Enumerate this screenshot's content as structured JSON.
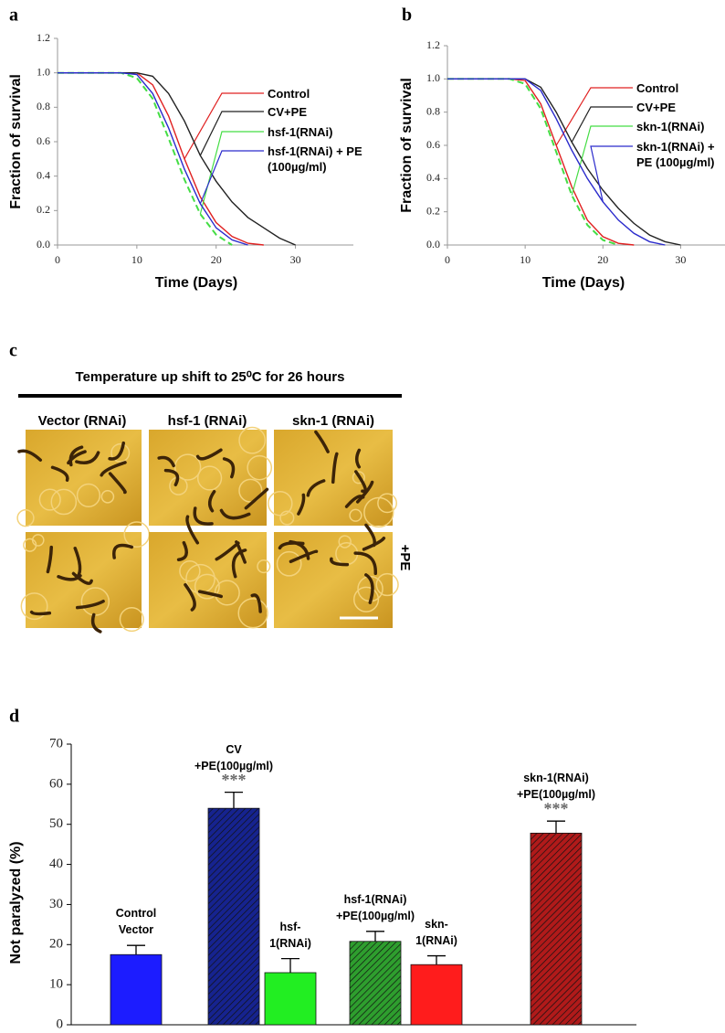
{
  "chart_data": [
    {
      "panel": "a",
      "type": "line",
      "ylabel": "Fraction of survival",
      "xlabel": "Time (Days)",
      "x": [
        0,
        6,
        8,
        10,
        12,
        14,
        16,
        18,
        20,
        22,
        24,
        26,
        28,
        30
      ],
      "xlim": [
        0,
        35
      ],
      "xticks": [
        0,
        10,
        20,
        30
      ],
      "ylim": [
        0,
        1.2
      ],
      "yticks": [
        {
          "value": 0,
          "label": "0.0"
        },
        0.2,
        0.4,
        0.6,
        0.8,
        {
          "value": 1,
          "label": "1.0"
        },
        1.2
      ],
      "series": [
        {
          "name": "Control",
          "color": "#e02020",
          "dashed": false,
          "values": [
            1,
            1,
            1,
            1,
            0.93,
            0.75,
            0.5,
            0.28,
            0.13,
            0.05,
            0.01,
            0,
            null,
            null
          ]
        },
        {
          "name": "CV+PE",
          "color": "#222222",
          "dashed": false,
          "values": [
            1,
            1,
            1,
            1,
            0.98,
            0.88,
            0.72,
            0.52,
            0.37,
            0.25,
            0.16,
            0.1,
            0.04,
            0
          ]
        },
        {
          "name": "hsf-1(RNAi)",
          "color": "#44dd44",
          "dashed": true,
          "values": [
            1,
            1,
            1,
            0.97,
            0.85,
            0.62,
            0.38,
            0.18,
            0.06,
            0,
            null,
            null,
            null,
            null
          ]
        },
        {
          "name": "hsf-1(RNAi) + PE (100µg/ml)",
          "color": "#2a2acc",
          "dashed": false,
          "values": [
            1,
            1,
            1,
            0.99,
            0.88,
            0.68,
            0.44,
            0.24,
            0.1,
            0.03,
            0,
            null,
            null,
            null
          ]
        }
      ]
    },
    {
      "panel": "b",
      "type": "line",
      "ylabel": "Fraction of survival",
      "xlabel": "Time (Days)",
      "x": [
        0,
        6,
        8,
        10,
        12,
        14,
        16,
        18,
        20,
        22,
        24,
        26,
        28,
        30
      ],
      "xlim": [
        0,
        35
      ],
      "xticks": [
        0,
        10,
        20,
        30
      ],
      "ylim": [
        0,
        1.2
      ],
      "yticks": [
        {
          "value": 0,
          "label": "0.0"
        },
        0.2,
        0.4,
        0.6,
        0.8,
        {
          "value": 1,
          "label": "1.0"
        },
        1.2
      ],
      "series": [
        {
          "name": "Control",
          "color": "#e02020",
          "dashed": false,
          "values": [
            1,
            1,
            1,
            0.99,
            0.85,
            0.6,
            0.35,
            0.15,
            0.05,
            0.01,
            0,
            null,
            null,
            null
          ]
        },
        {
          "name": "CV+PE",
          "color": "#222222",
          "dashed": false,
          "values": [
            1,
            1,
            1,
            1,
            0.95,
            0.8,
            0.62,
            0.46,
            0.33,
            0.22,
            0.13,
            0.06,
            0.02,
            0
          ]
        },
        {
          "name": "skn-1(RNAi)",
          "color": "#44dd44",
          "dashed": true,
          "values": [
            1,
            1,
            1,
            0.97,
            0.82,
            0.56,
            0.3,
            0.12,
            0.03,
            0,
            null,
            null,
            null,
            null
          ]
        },
        {
          "name": "skn-1(RNAi) + PE (100µg/ml)",
          "color": "#2a2acc",
          "dashed": false,
          "values": [
            1,
            1,
            1,
            1,
            0.93,
            0.76,
            0.57,
            0.4,
            0.26,
            0.15,
            0.07,
            0.02,
            0,
            null
          ]
        }
      ]
    },
    {
      "panel": "d",
      "type": "bar",
      "ylabel": "Not paralyzed (%)",
      "categories": [
        "Control Vector",
        "CV +PE(100µg/ml)",
        "hsf-1(RNAi)",
        "hsf-1(RNAi) +PE(100µg/ml)",
        "skn-1(RNAi)",
        "skn-1(RNAi) +PE(100µg/ml)"
      ],
      "values": [
        17.5,
        54,
        13,
        20.8,
        15,
        47.8
      ],
      "errors": [
        2.3,
        4,
        3.5,
        2.5,
        2.2,
        3
      ],
      "colors": [
        "#1c1cff",
        "#16238f",
        "#22ee22",
        "#2e9e2e",
        "#ff1c1c",
        "#b01a1a"
      ],
      "hatched": [
        false,
        true,
        false,
        true,
        false,
        true
      ],
      "significance": [
        null,
        "***",
        null,
        null,
        null,
        "***"
      ],
      "ylim": [
        0,
        70
      ],
      "yticks": [
        0,
        10,
        20,
        30,
        40,
        50,
        60,
        70
      ]
    }
  ],
  "figure_c": {
    "panel": "c",
    "title": "Temperature up shift to 25⁰C for 26 hours",
    "columns": [
      "Vector (RNAi)",
      "hsf-1 (RNAi)",
      "skn-1 (RNAi)"
    ],
    "row_label": "+PE"
  }
}
